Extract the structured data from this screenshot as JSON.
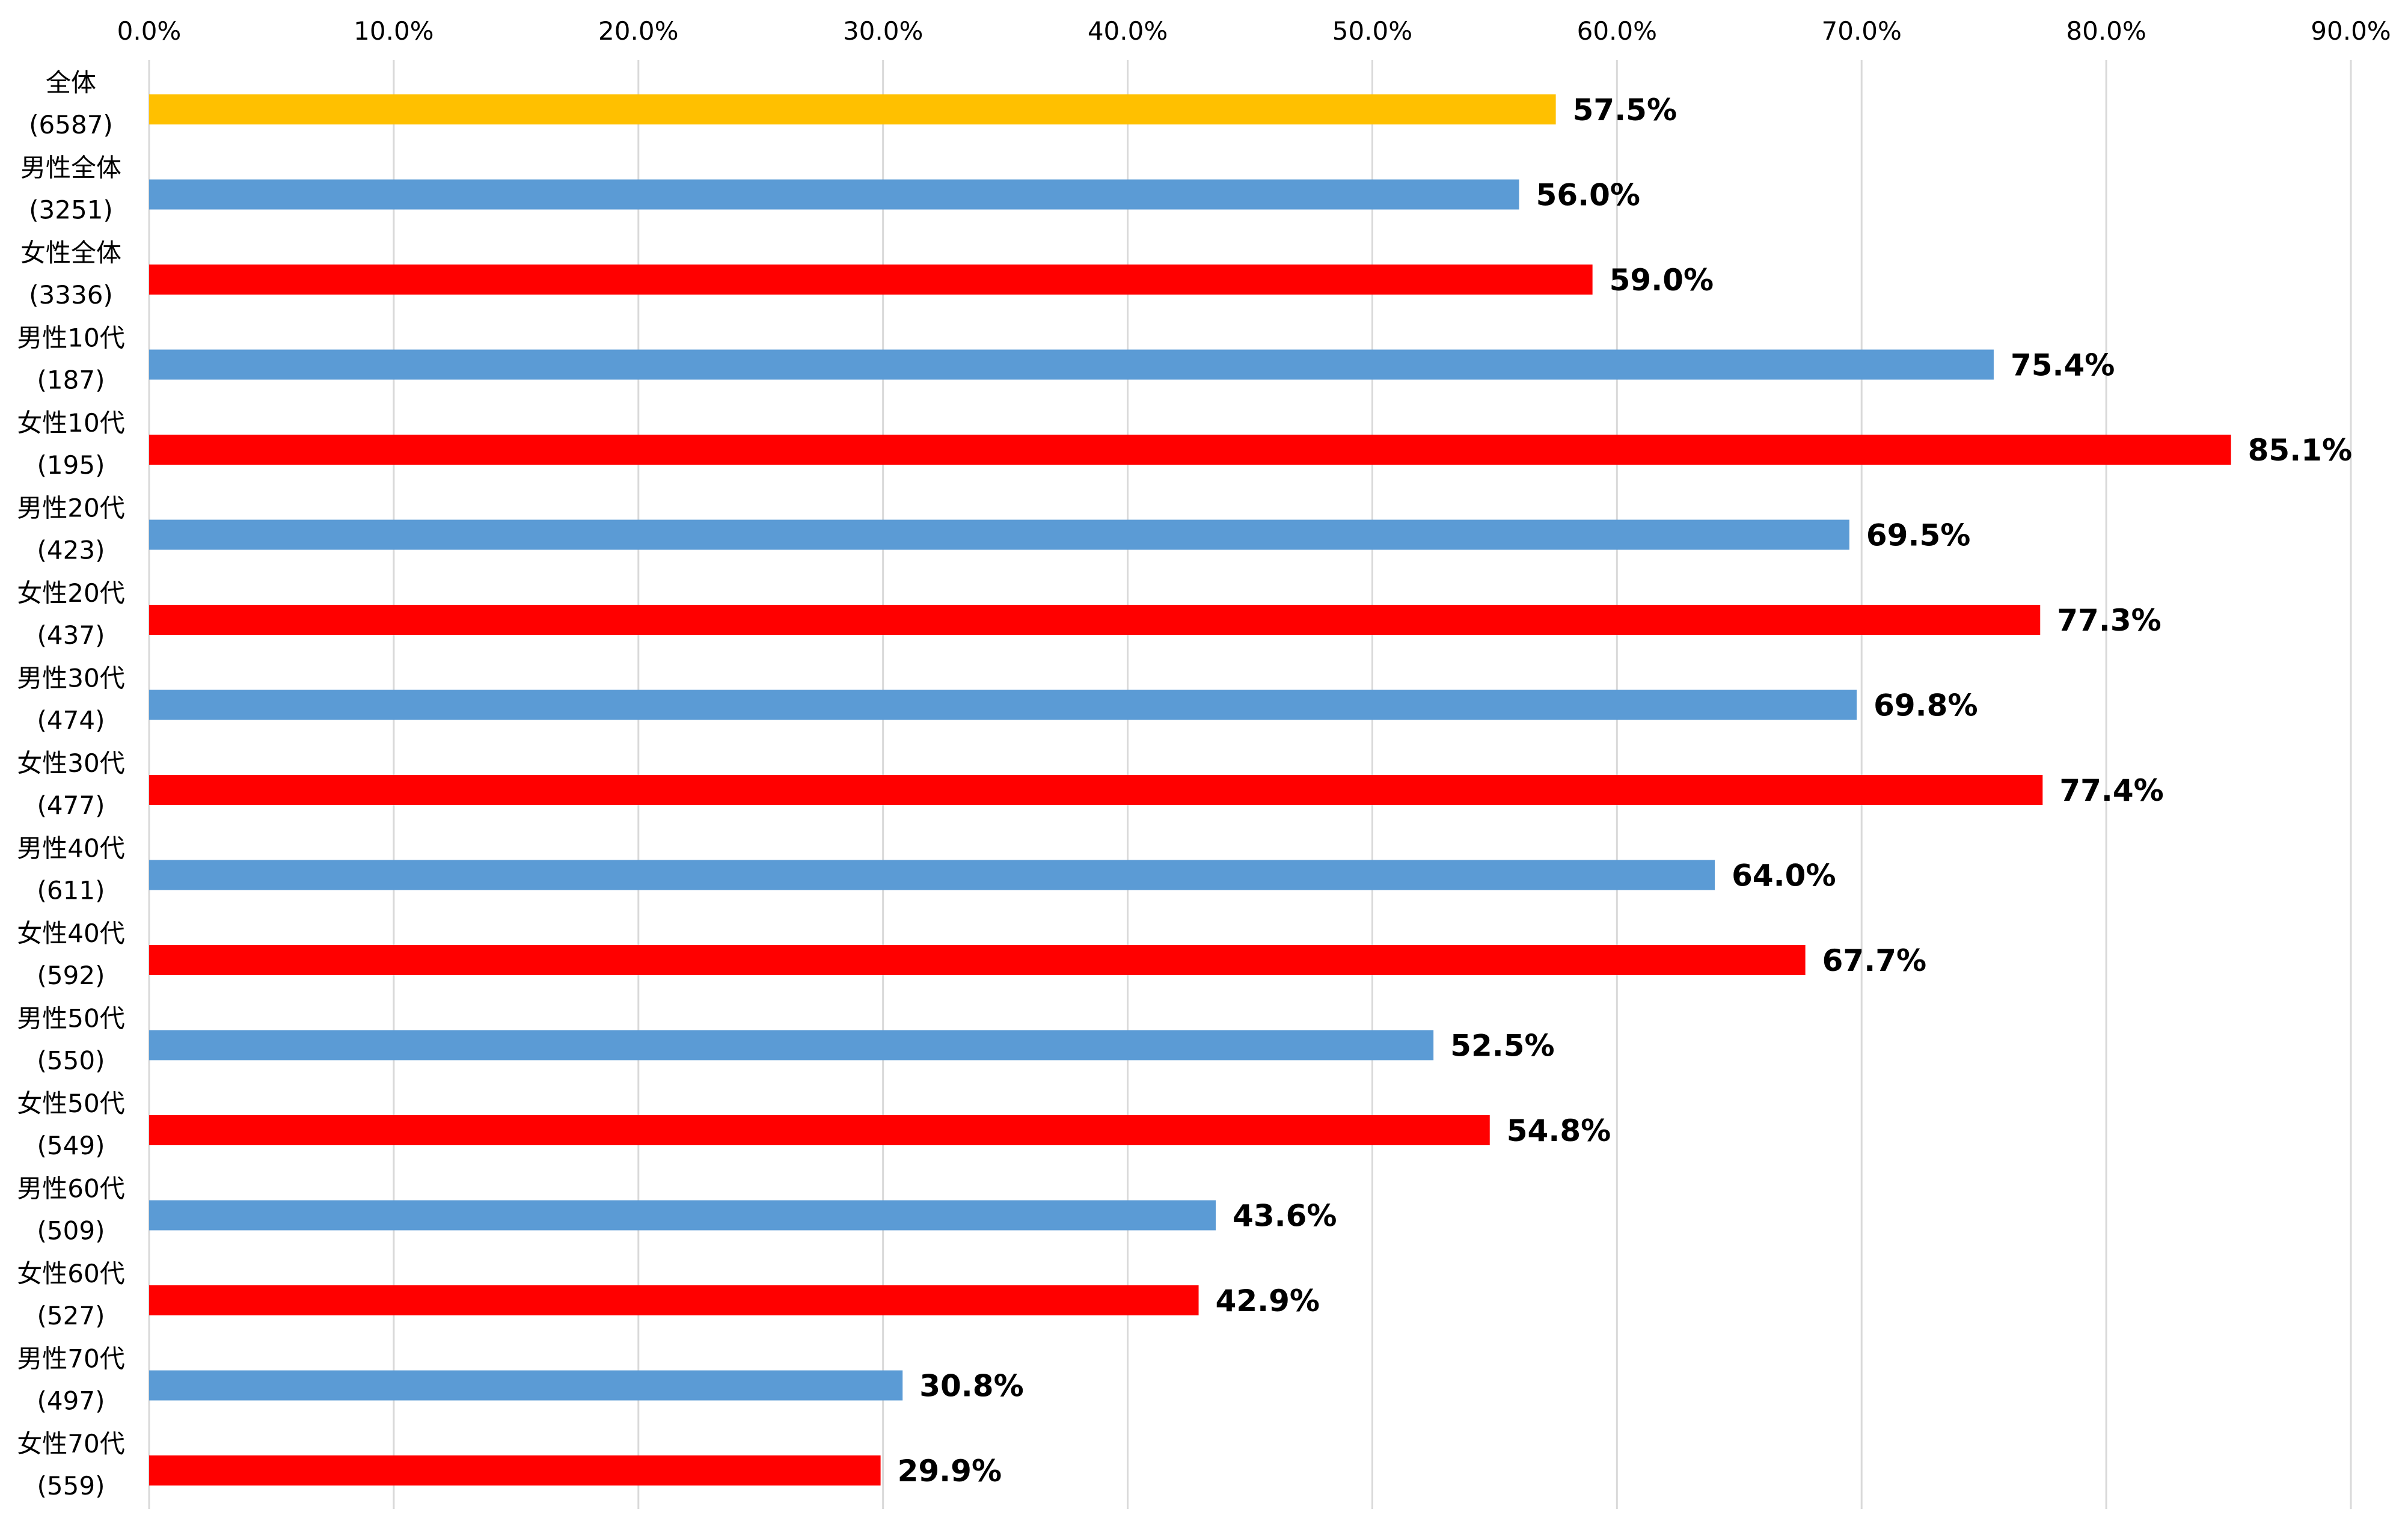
{
  "chart_data": {
    "type": "bar",
    "orientation": "horizontal",
    "categories": [
      {
        "name": "全体",
        "n": "(6587)"
      },
      {
        "name": "男性全体",
        "n": "(3251)"
      },
      {
        "name": "女性全体",
        "n": "(3336)"
      },
      {
        "name": "男性10代",
        "n": "(187)"
      },
      {
        "name": "女性10代",
        "n": "(195)"
      },
      {
        "name": "男性20代",
        "n": "(423)"
      },
      {
        "name": "女性20代",
        "n": "(437)"
      },
      {
        "name": "男性30代",
        "n": "(474)"
      },
      {
        "name": "女性30代",
        "n": "(477)"
      },
      {
        "name": "男性40代",
        "n": "(611)"
      },
      {
        "name": "女性40代",
        "n": "(592)"
      },
      {
        "name": "男性50代",
        "n": "(550)"
      },
      {
        "name": "女性50代",
        "n": "(549)"
      },
      {
        "name": "男性60代",
        "n": "(509)"
      },
      {
        "name": "女性60代",
        "n": "(527)"
      },
      {
        "name": "男性70代",
        "n": "(497)"
      },
      {
        "name": "女性70代",
        "n": "(559)"
      }
    ],
    "values": [
      57.5,
      56.0,
      59.0,
      75.4,
      85.1,
      69.5,
      77.3,
      69.8,
      77.4,
      64.0,
      67.7,
      52.5,
      54.8,
      43.6,
      42.9,
      30.8,
      29.9
    ],
    "value_labels": [
      "57.5%",
      "56.0%",
      "59.0%",
      "75.4%",
      "85.1%",
      "69.5%",
      "77.3%",
      "69.8%",
      "77.4%",
      "64.0%",
      "67.7%",
      "52.5%",
      "54.8%",
      "43.6%",
      "42.9%",
      "30.8%",
      "29.9%"
    ],
    "bar_colors": [
      "#FFC000",
      "#5B9BD5",
      "#FF0000",
      "#5B9BD5",
      "#FF0000",
      "#5B9BD5",
      "#FF0000",
      "#5B9BD5",
      "#FF0000",
      "#5B9BD5",
      "#FF0000",
      "#5B9BD5",
      "#FF0000",
      "#5B9BD5",
      "#FF0000",
      "#5B9BD5",
      "#FF0000"
    ],
    "x_ticks": [
      "0.0%",
      "10.0%",
      "20.0%",
      "30.0%",
      "40.0%",
      "50.0%",
      "60.0%",
      "70.0%",
      "80.0%",
      "90.0%"
    ],
    "xlim": [
      0,
      90
    ],
    "x_axis_position": "top",
    "grid": true,
    "grid_color": "#D9D9D9",
    "title": "",
    "xlabel": "",
    "ylabel": ""
  }
}
